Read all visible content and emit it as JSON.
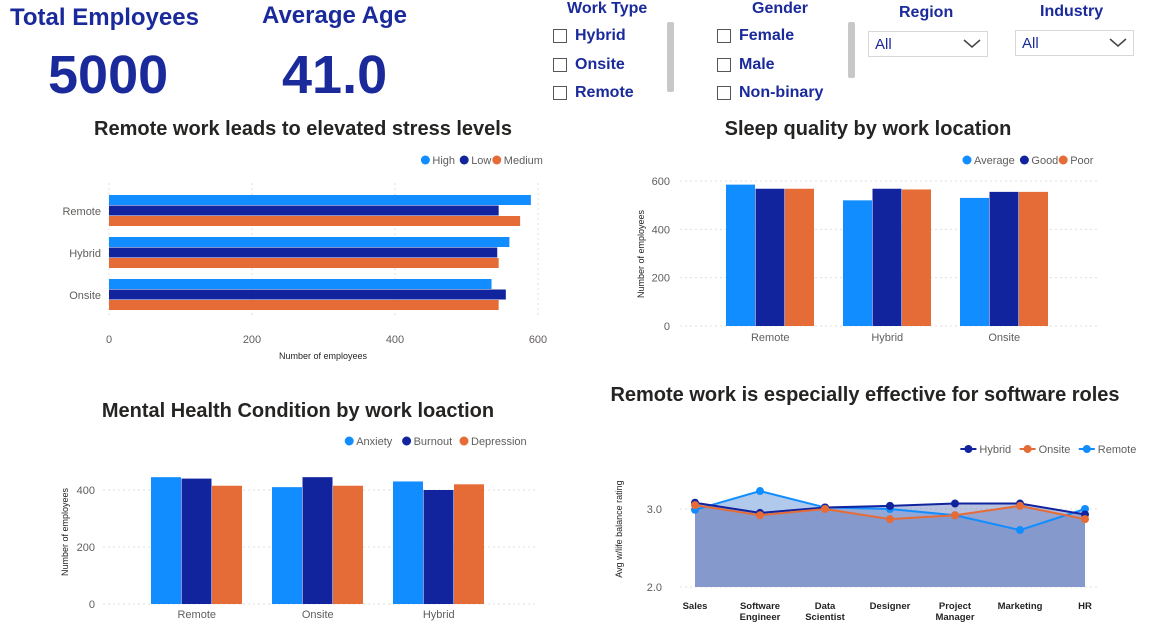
{
  "kpis": {
    "total_employees": {
      "label": "Total Employees",
      "value": "5000"
    },
    "average_age": {
      "label": "Average Age",
      "value": "41.0"
    }
  },
  "slicers": {
    "work_type": {
      "title": "Work Type",
      "options": [
        "Hybrid",
        "Onsite",
        "Remote"
      ]
    },
    "gender": {
      "title": "Gender",
      "options": [
        "Female",
        "Male",
        "Non-binary"
      ]
    },
    "region": {
      "title": "Region",
      "value": "All"
    },
    "industry": {
      "title": "Industry",
      "value": "All"
    }
  },
  "colors": {
    "light_blue": "#118dff",
    "dark_blue": "#12239e",
    "orange": "#e66c37",
    "area_fill": "#7a8cc4",
    "area_light": "#a9c4ea"
  },
  "chart_data": [
    {
      "type": "bar",
      "orientation": "horizontal",
      "title": "Remote work leads to elevated stress levels",
      "categories": [
        "Remote",
        "Hybrid",
        "Onsite"
      ],
      "series": [
        {
          "name": "High",
          "values": [
            590,
            560,
            535
          ]
        },
        {
          "name": "Low",
          "values": [
            545,
            543,
            555
          ]
        },
        {
          "name": "Medium",
          "values": [
            575,
            545,
            545
          ]
        }
      ],
      "xlabel": "Number of employees",
      "ylabel": "",
      "xlim": [
        0,
        600
      ],
      "ticks": [
        "0",
        "200",
        "400",
        "600"
      ],
      "legend": "top-right"
    },
    {
      "type": "bar",
      "title": "Sleep quality by work location",
      "categories": [
        "Remote",
        "Hybrid",
        "Onsite"
      ],
      "series": [
        {
          "name": "Average",
          "values": [
            585,
            520,
            530
          ]
        },
        {
          "name": "Good",
          "values": [
            568,
            568,
            555
          ]
        },
        {
          "name": "Poor",
          "values": [
            568,
            565,
            555
          ]
        }
      ],
      "xlabel": "",
      "ylabel": "Number of employees",
      "ylim": [
        0,
        600
      ],
      "ticks": [
        "0",
        "200",
        "400",
        "600"
      ],
      "legend": "top-right"
    },
    {
      "type": "bar",
      "title": "Mental Health Condition by work loaction",
      "categories": [
        "Remote",
        "Onsite",
        "Hybrid"
      ],
      "series": [
        {
          "name": "Anxiety",
          "values": [
            445,
            410,
            430
          ]
        },
        {
          "name": "Burnout",
          "values": [
            440,
            445,
            400
          ]
        },
        {
          "name": "Depression",
          "values": [
            415,
            415,
            420
          ]
        }
      ],
      "xlabel": "",
      "ylabel": "Number of employees",
      "ylim": [
        0,
        450
      ],
      "ticks": [
        "0",
        "200",
        "400"
      ],
      "legend": "top-right"
    },
    {
      "type": "area",
      "title": "Remote work is especially effective for software roles",
      "categories": [
        "Sales",
        "Software Engineer",
        "Data Scientist",
        "Designer",
        "Project Manager",
        "Marketing",
        "HR"
      ],
      "series": [
        {
          "name": "Hybrid",
          "values": [
            3.08,
            2.95,
            3.02,
            3.04,
            3.07,
            3.07,
            2.93
          ]
        },
        {
          "name": "Onsite",
          "values": [
            3.05,
            2.92,
            3.0,
            2.87,
            2.92,
            3.04,
            2.87
          ]
        },
        {
          "name": "Remote",
          "values": [
            2.99,
            3.23,
            3.02,
            3.0,
            2.92,
            2.73,
            3.0
          ]
        }
      ],
      "xlabel": "",
      "ylabel": "Avg w/life balance rating",
      "ylim": [
        2.0,
        3.3
      ],
      "ticks": [
        "2.0",
        "3.0"
      ],
      "legend": "top-right"
    }
  ]
}
